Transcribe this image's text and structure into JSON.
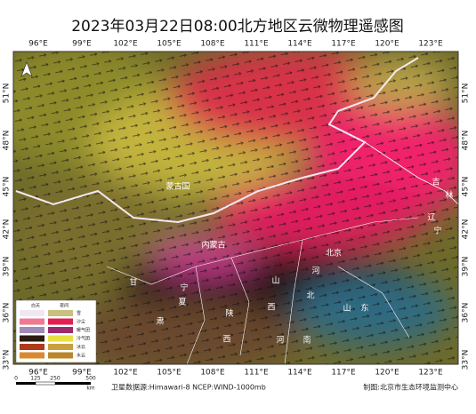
{
  "title": "2023年03月22日08:00北方地区云微物理遥感图",
  "map": {
    "lon_ticks": [
      "96°E",
      "99°E",
      "102°E",
      "105°E",
      "108°E",
      "111°E",
      "114°E",
      "117°E",
      "120°E",
      "123°E"
    ],
    "lat_ticks": [
      "51°N",
      "48°N",
      "45°N",
      "42°N",
      "39°N",
      "36°N",
      "33°N"
    ],
    "places": [
      "蒙古国",
      "内蒙古",
      "吉",
      "林",
      "辽",
      "宁",
      "北京",
      "河",
      "北",
      "甘",
      "宁",
      "夏",
      "肃",
      "陕",
      "西",
      "山",
      "西",
      "山",
      "东",
      "河",
      "南"
    ]
  },
  "legend": {
    "headers": [
      "白天",
      "夜间"
    ],
    "items": [
      "雪",
      "沙尘",
      "暖气团",
      "冷气团",
      "冰云",
      "水云"
    ]
  },
  "scale": {
    "ticks": [
      "0",
      "125",
      "250",
      "500"
    ],
    "unit": "km"
  },
  "footer": {
    "source": "卫星数据源:Himawari-8 NCEP:WIND-1000mb",
    "credit": "制图:北京市生态环境监测中心"
  }
}
